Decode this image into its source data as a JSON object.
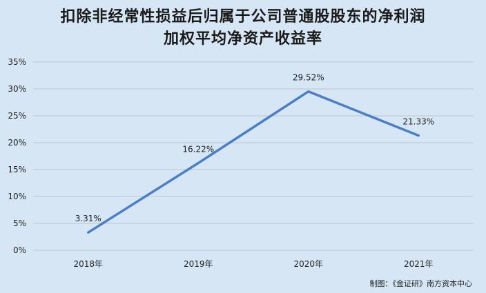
{
  "chart_data": {
    "type": "line",
    "title_lines": [
      "扣除非经常性损益后归属于公司普通股股东的净利润",
      "加权平均净资产收益率"
    ],
    "categories": [
      "2018年",
      "2019年",
      "2020年",
      "2021年"
    ],
    "values": [
      3.31,
      16.22,
      29.52,
      21.33
    ],
    "data_labels": [
      "3.31%",
      "16.22%",
      "29.52%",
      "21.33%"
    ],
    "y_ticks": [
      "0%",
      "5%",
      "10%",
      "15%",
      "20%",
      "25%",
      "30%",
      "35%"
    ],
    "ylim": [
      0,
      35
    ],
    "y_step": 5,
    "grid": true,
    "legend": "none",
    "line_color": "#4a7fc8",
    "grid_color": "#bcc6d0"
  },
  "footer": {
    "credit": "制图：《金证研》南方资本中心"
  }
}
